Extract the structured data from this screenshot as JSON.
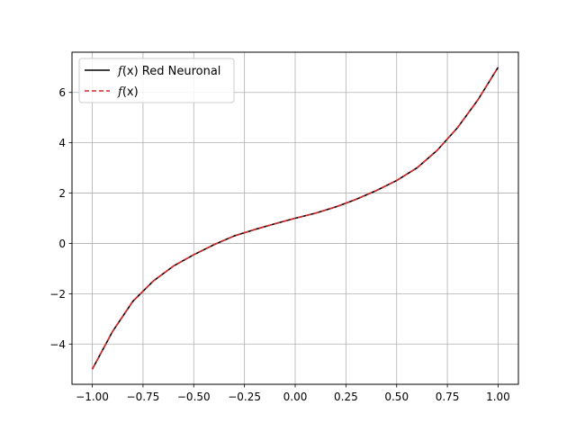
{
  "chart_data": {
    "type": "line",
    "title": "",
    "xlabel": "",
    "ylabel": "",
    "xlim": [
      -1.1,
      1.1
    ],
    "ylim": [
      -5.6,
      7.6
    ],
    "x_ticks": [
      -1.0,
      -0.75,
      -0.5,
      -0.25,
      0.0,
      0.25,
      0.5,
      0.75,
      1.0
    ],
    "x_tick_labels": [
      "−1.00",
      "−0.75",
      "−0.50",
      "−0.25",
      "0.00",
      "0.25",
      "0.50",
      "0.75",
      "1.00"
    ],
    "y_ticks": [
      -4,
      -2,
      0,
      2,
      4,
      6
    ],
    "y_tick_labels": [
      "−4",
      "−2",
      "0",
      "2",
      "4",
      "6"
    ],
    "grid": true,
    "legend_position": "top-left",
    "series": [
      {
        "name": "f(x) Red Neuronal",
        "color": "#000000",
        "style": "solid",
        "x": [
          -1.0,
          -0.9,
          -0.8,
          -0.7,
          -0.6,
          -0.5,
          -0.4,
          -0.3,
          -0.2,
          -0.1,
          0.0,
          0.1,
          0.2,
          0.3,
          0.4,
          0.5,
          0.6,
          0.7,
          0.8,
          0.9,
          1.0
        ],
        "y": [
          -5.0,
          -3.5,
          -2.3,
          -1.5,
          -0.9,
          -0.45,
          -0.05,
          0.3,
          0.55,
          0.78,
          1.0,
          1.2,
          1.45,
          1.75,
          2.1,
          2.5,
          3.0,
          3.7,
          4.6,
          5.7,
          7.0
        ]
      },
      {
        "name": "f(x)",
        "color": "#d62728",
        "style": "dashed",
        "x": [
          -1.0,
          -0.9,
          -0.8,
          -0.7,
          -0.6,
          -0.5,
          -0.4,
          -0.3,
          -0.2,
          -0.1,
          0.0,
          0.1,
          0.2,
          0.3,
          0.4,
          0.5,
          0.6,
          0.7,
          0.8,
          0.9,
          1.0
        ],
        "y": [
          -5.0,
          -3.5,
          -2.3,
          -1.5,
          -0.9,
          -0.45,
          -0.05,
          0.3,
          0.55,
          0.78,
          1.0,
          1.2,
          1.45,
          1.75,
          2.1,
          2.5,
          3.0,
          3.7,
          4.6,
          5.7,
          7.0
        ]
      }
    ],
    "legend": {
      "entries": [
        {
          "fx": "f",
          "paren": "(x)",
          "text": " Red Neuronal"
        },
        {
          "fx": "f",
          "paren": "(x)",
          "text": ""
        }
      ]
    }
  }
}
